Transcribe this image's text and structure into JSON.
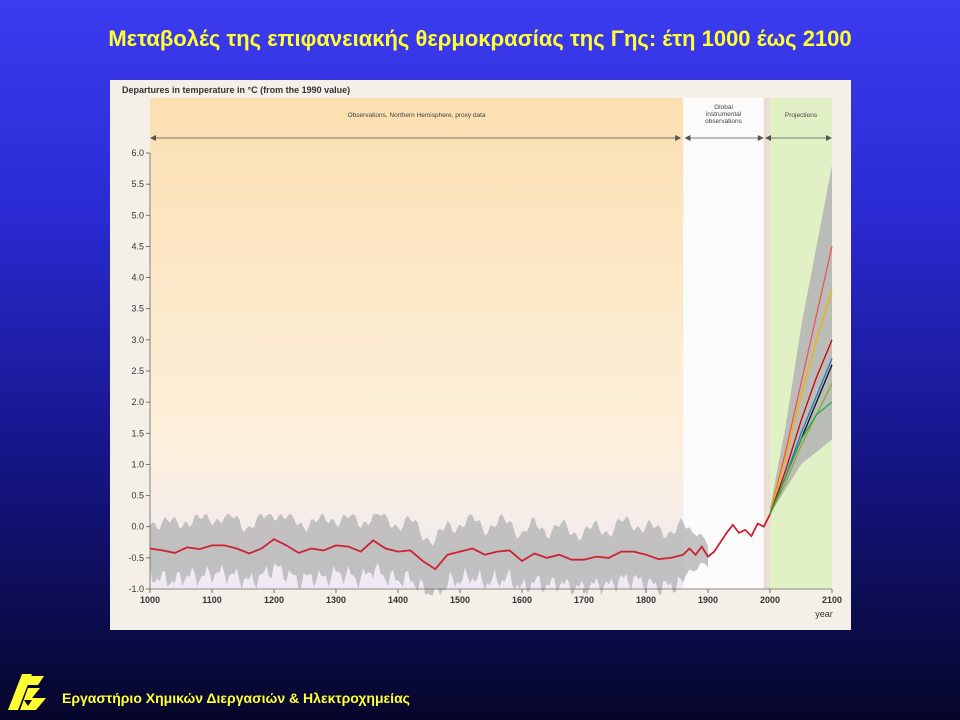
{
  "slide": {
    "title": "Μεταβολές της επιφανειακής θερμοκρασίας της Γης: έτη 1000 έως 2100",
    "footer": "Εργαστήριο Χημικών Διεργασιών & Ηλεκτροχημείας",
    "logo_icon": "lab-logo-icon",
    "colors": {
      "title": "#ffff33",
      "background_top": "#3c3cf0",
      "background_bottom": "#06062a"
    }
  },
  "chart_data": {
    "type": "line",
    "title": "Departures in temperature in °C (from the 1990 value)",
    "xlabel": "year",
    "ylabel": "",
    "xlim": [
      1000,
      2100
    ],
    "ylim": [
      -1.0,
      6.0
    ],
    "xticks": [
      1000,
      1100,
      1200,
      1300,
      1400,
      1500,
      1600,
      1700,
      1800,
      1900,
      2000,
      2100
    ],
    "yticks": [
      -1.0,
      -0.5,
      0.0,
      0.5,
      1.0,
      1.5,
      2.0,
      2.5,
      3.0,
      3.5,
      4.0,
      4.5,
      5.0,
      5.5,
      6.0
    ],
    "ytick_labels": [
      "-1.0",
      "-0.5",
      "0.0",
      "0.5",
      "1.0",
      "1.5",
      "2.0",
      "2.5",
      "3.0",
      "3.5",
      "4.0",
      "4.5",
      "5.0",
      "5.5",
      "6.0"
    ],
    "regions": [
      {
        "label": "Observations, Northern Hemisphere, proxy data",
        "x_range": [
          1000,
          1860
        ],
        "color": "#fbe3bb"
      },
      {
        "label": "Global instrumental observations",
        "x_range": [
          1860,
          2000
        ],
        "color": "#fbfbfb"
      },
      {
        "label": "Projections",
        "x_range": [
          2000,
          2100
        ],
        "color": "#e2f0c6"
      }
    ],
    "observations": {
      "color": "#cc2233",
      "x": [
        1000,
        1020,
        1040,
        1060,
        1080,
        1100,
        1120,
        1140,
        1160,
        1180,
        1200,
        1220,
        1240,
        1260,
        1280,
        1300,
        1320,
        1340,
        1360,
        1380,
        1400,
        1420,
        1440,
        1460,
        1480,
        1500,
        1520,
        1540,
        1560,
        1580,
        1600,
        1620,
        1640,
        1660,
        1680,
        1700,
        1720,
        1740,
        1760,
        1780,
        1800,
        1820,
        1840,
        1860,
        1870,
        1880,
        1890,
        1900,
        1910,
        1920,
        1930,
        1940,
        1950,
        1960,
        1970,
        1980,
        1990,
        2000
      ],
      "y": [
        -0.35,
        -0.38,
        -0.42,
        -0.33,
        -0.36,
        -0.3,
        -0.3,
        -0.35,
        -0.43,
        -0.35,
        -0.2,
        -0.3,
        -0.42,
        -0.35,
        -0.38,
        -0.3,
        -0.32,
        -0.4,
        -0.22,
        -0.35,
        -0.4,
        -0.38,
        -0.55,
        -0.68,
        -0.45,
        -0.4,
        -0.35,
        -0.45,
        -0.4,
        -0.38,
        -0.55,
        -0.43,
        -0.5,
        -0.45,
        -0.53,
        -0.53,
        -0.48,
        -0.5,
        -0.4,
        -0.4,
        -0.45,
        -0.52,
        -0.5,
        -0.45,
        -0.35,
        -0.45,
        -0.32,
        -0.48,
        -0.4,
        -0.25,
        -0.1,
        0.03,
        -0.1,
        -0.05,
        -0.15,
        0.05,
        0.0,
        0.2
      ]
    },
    "uncertainty_band_1000_1860": {
      "upper": 0.2,
      "lower": -1.1,
      "color": "#b8b8b8"
    },
    "projections": {
      "years": [
        2000,
        2025,
        2050,
        2075,
        2100
      ],
      "band_upper": [
        0.3,
        1.6,
        3.2,
        4.5,
        5.8
      ],
      "band_lower": [
        0.2,
        0.6,
        1.0,
        1.2,
        1.4
      ],
      "band_color": "#b6b6b6",
      "series": [
        {
          "values": [
            0.2,
            1.2,
            2.3,
            3.4,
            4.5
          ],
          "color": "#ee5555"
        },
        {
          "values": [
            0.2,
            1.1,
            2.1,
            3.0,
            3.8
          ],
          "color": "#f5b300"
        },
        {
          "values": [
            0.2,
            0.9,
            1.7,
            2.4,
            3.0
          ],
          "color": "#cc0000"
        },
        {
          "values": [
            0.2,
            0.8,
            1.5,
            2.1,
            2.7
          ],
          "color": "#2277cc"
        },
        {
          "values": [
            0.2,
            0.8,
            1.4,
            2.0,
            2.6
          ],
          "color": "#111111"
        },
        {
          "values": [
            0.2,
            0.7,
            1.3,
            1.8,
            2.3
          ],
          "color": "#88aa33"
        },
        {
          "values": [
            0.2,
            0.8,
            1.4,
            1.8,
            2.0
          ],
          "color": "#22aa55"
        }
      ]
    }
  }
}
